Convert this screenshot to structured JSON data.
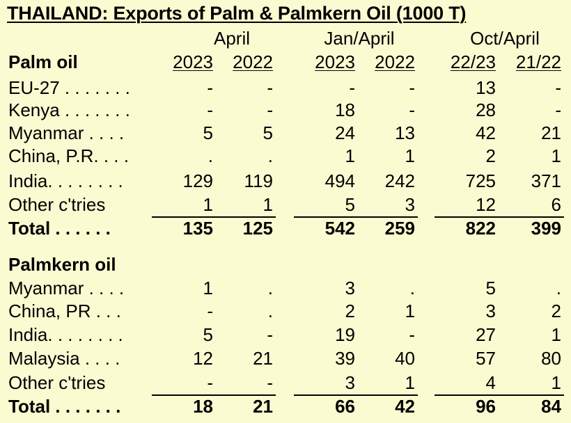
{
  "title": "THAILAND: Exports of Palm & Palmkern Oil (1000 T)",
  "groups": [
    "April",
    "Jan/April",
    "Oct/April"
  ],
  "palm": {
    "heading": "Palm oil",
    "years": [
      "2023",
      "2022",
      "2023",
      "2022",
      "22/23",
      "21/22"
    ],
    "rows": [
      {
        "label": "EU-27 . . . . . . .",
        "values": [
          "-",
          "-",
          "-",
          "-",
          "13",
          "-"
        ]
      },
      {
        "label": "Kenya . . . . . . .",
        "values": [
          "-",
          "-",
          "18",
          "-",
          "28",
          "-"
        ]
      },
      {
        "label": "Myanmar . . . .",
        "values": [
          "5",
          "5",
          "24",
          "13",
          "42",
          "21"
        ]
      },
      {
        "label": "China, P.R. . . .",
        "values": [
          ".",
          ".",
          "1",
          "1",
          "2",
          "1"
        ]
      },
      {
        "label": "India. . . . . . . .",
        "values": [
          "129",
          "119",
          "494",
          "242",
          "725",
          "371"
        ]
      },
      {
        "label": "Other c'tries",
        "values": [
          "1",
          "1",
          "5",
          "3",
          "12",
          "6"
        ]
      }
    ],
    "total": {
      "label": "Total  . . . . . .",
      "values": [
        "135",
        "125",
        "542",
        "259",
        "822",
        "399"
      ]
    }
  },
  "palmkern": {
    "heading": "Palmkern oil",
    "rows": [
      {
        "label": "Myanmar . . . .",
        "values": [
          "1",
          ".",
          "3",
          ".",
          "5",
          "."
        ]
      },
      {
        "label": "China, PR . . .",
        "values": [
          "-",
          ".",
          "2",
          "1",
          "3",
          "2"
        ]
      },
      {
        "label": "India. . . . . . . .",
        "values": [
          "5",
          "-",
          "19",
          "-",
          "27",
          "1"
        ]
      },
      {
        "label": "Malaysia . . . .",
        "values": [
          "12",
          "21",
          "39",
          "40",
          "57",
          "80"
        ]
      },
      {
        "label": "Other c'tries",
        "values": [
          "-",
          "-",
          "3",
          "1",
          "4",
          "1"
        ]
      }
    ],
    "total": {
      "label": "Total . . . . . . .",
      "values": [
        "18",
        "21",
        "66",
        "42",
        "96",
        "84"
      ]
    }
  }
}
